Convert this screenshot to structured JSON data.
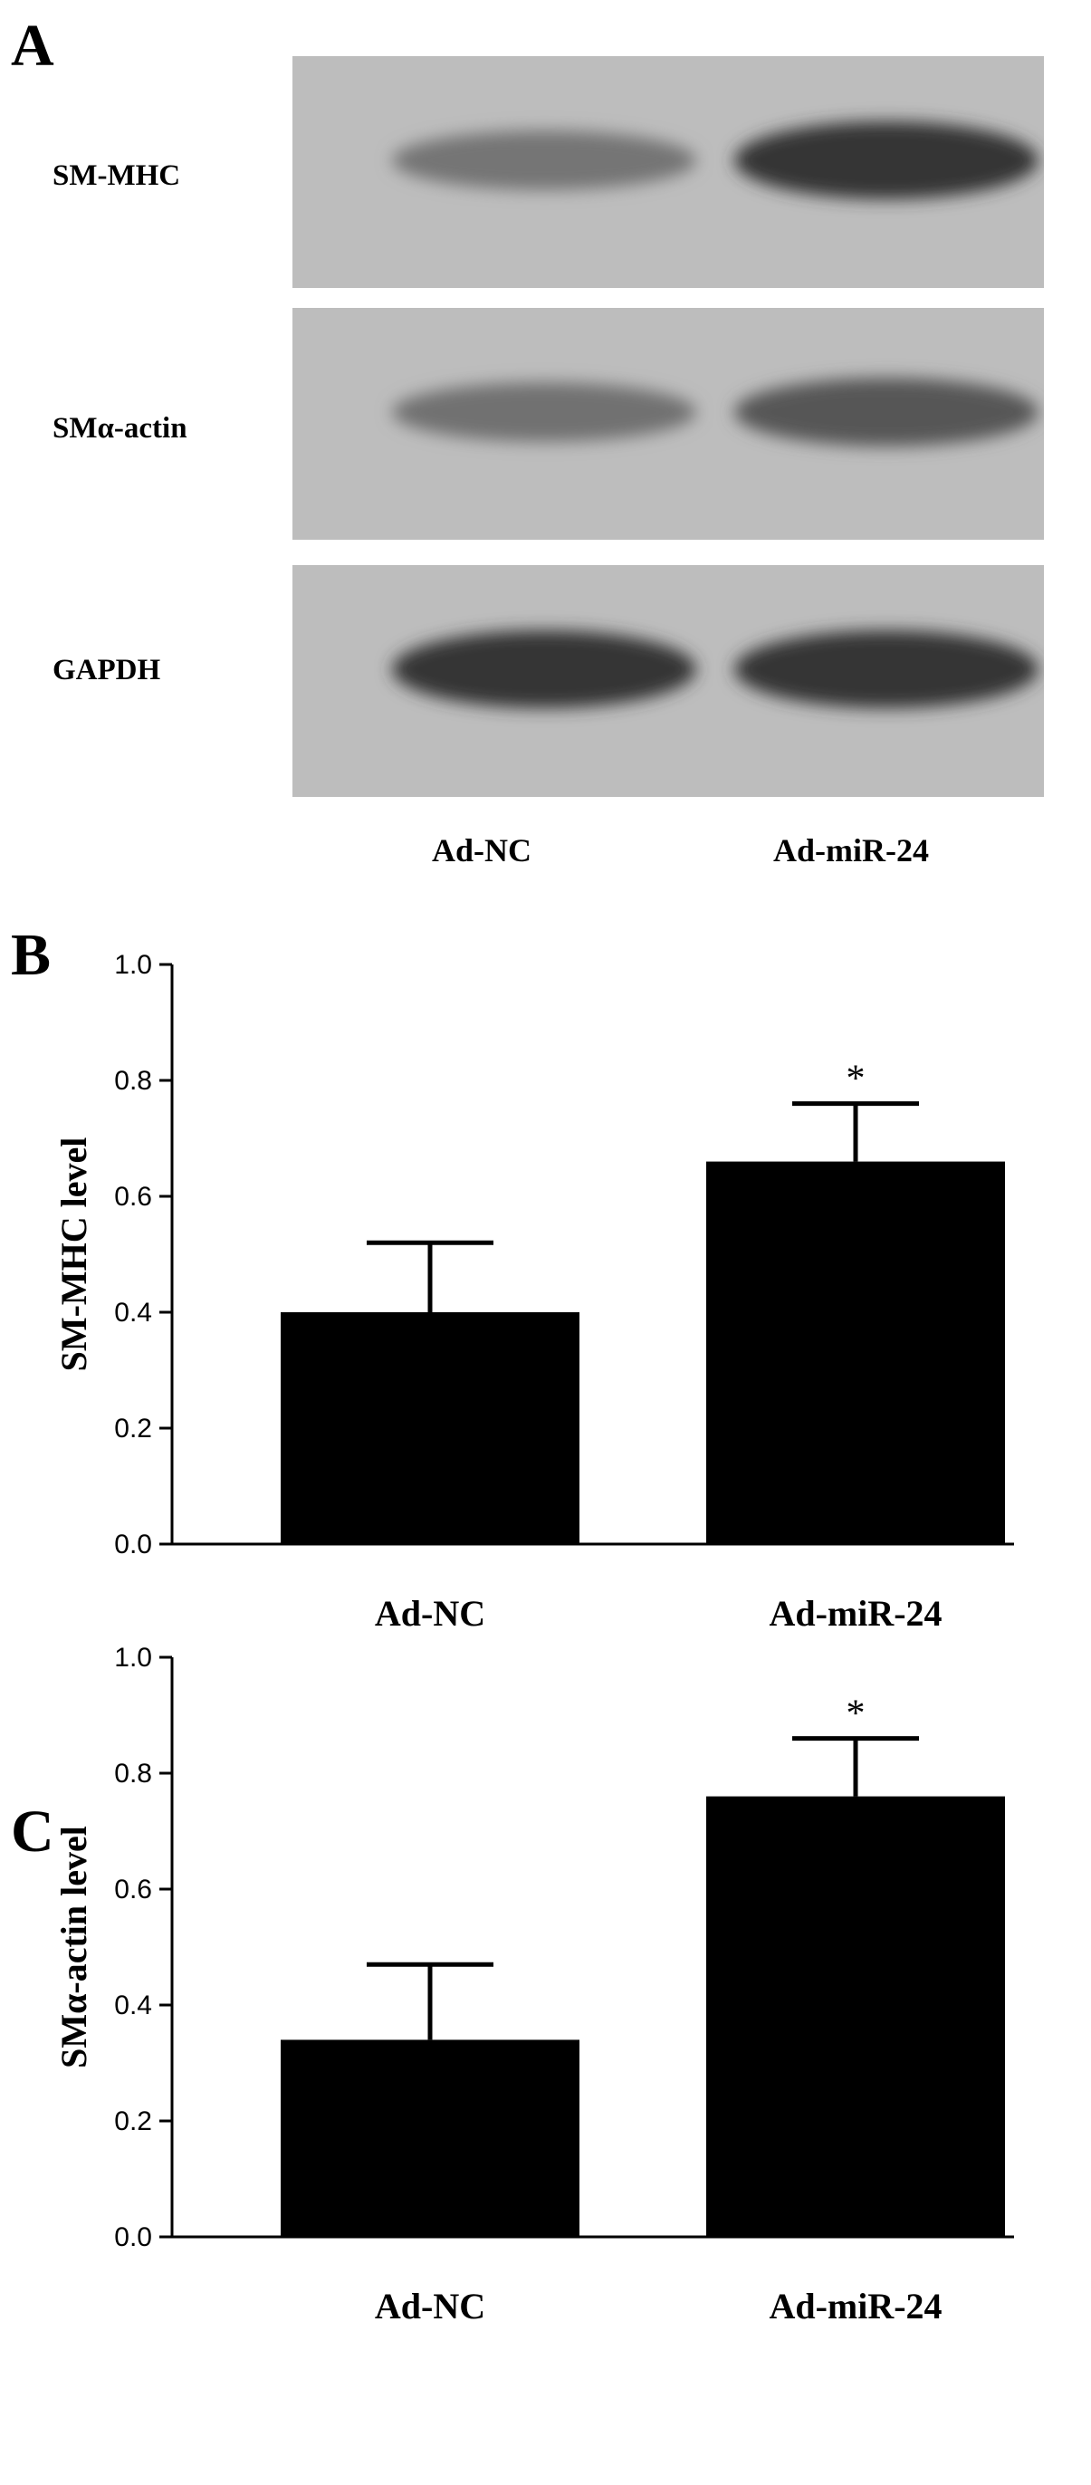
{
  "panel_a": {
    "letter": "A",
    "rows": [
      {
        "label": "SM-MHC",
        "bands": [
          {
            "intensity": 0.42,
            "thickness": 0.55
          },
          {
            "intensity": 0.85,
            "thickness": 0.85
          }
        ]
      },
      {
        "label": "SMα-actin",
        "bands": [
          {
            "intensity": 0.45,
            "thickness": 0.55
          },
          {
            "intensity": 0.62,
            "thickness": 0.7
          }
        ]
      },
      {
        "label": "GAPDH",
        "bands": [
          {
            "intensity": 0.85,
            "thickness": 0.85
          },
          {
            "intensity": 0.85,
            "thickness": 0.85
          }
        ]
      }
    ],
    "lanes": [
      "Ad-NC",
      "Ad-miR-24"
    ]
  },
  "chart_data": [
    {
      "panel": "B",
      "type": "bar",
      "categories": [
        "Ad-NC",
        "Ad-miR-24"
      ],
      "values": [
        0.4,
        0.66
      ],
      "error": [
        0.12,
        0.1
      ],
      "significance": [
        "",
        "*"
      ],
      "ylabel": "SM-MHC level",
      "ylim": [
        0,
        1.0
      ],
      "yticks": [
        "0.0",
        "0.2",
        "0.4",
        "0.6",
        "0.8",
        "1.0"
      ],
      "color": "#000000"
    },
    {
      "panel": "C",
      "type": "bar",
      "categories": [
        "Ad-NC",
        "Ad-miR-24"
      ],
      "values": [
        0.34,
        0.76
      ],
      "error": [
        0.13,
        0.1
      ],
      "significance": [
        "",
        "*"
      ],
      "ylabel": "SMα-actin level",
      "ylim": [
        0,
        1.0
      ],
      "yticks": [
        "0.0",
        "0.2",
        "0.4",
        "0.6",
        "0.8",
        "1.0"
      ],
      "color": "#000000"
    }
  ]
}
